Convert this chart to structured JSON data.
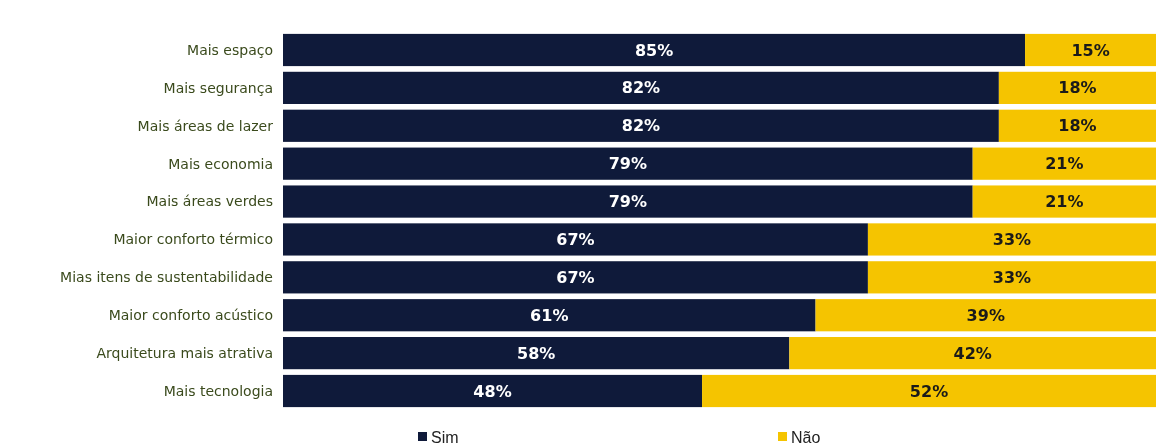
{
  "chart_data": {
    "type": "bar",
    "orientation": "horizontal",
    "stacked": true,
    "legend": "bottom",
    "xlim": [
      0,
      100
    ],
    "tick_labels": "y",
    "categories": [
      "Mais espaço",
      "Mais segurança",
      "Mais áreas de lazer",
      "Mais economia",
      "Mais áreas verdes",
      "Maior conforto térmico",
      "Mias itens de sustentabilidade",
      "Maior conforto acústico",
      "Arquitetura mais atrativa",
      "Mais tecnologia"
    ],
    "series": [
      {
        "name": "Sim",
        "color": "#0f1a3a",
        "values": [
          85,
          82,
          82,
          79,
          79,
          67,
          67,
          61,
          58,
          48
        ],
        "value_labels": [
          "85%",
          "82%",
          "82%",
          "79%",
          "79%",
          "67%",
          "67%",
          "61%",
          "58%",
          "48%"
        ]
      },
      {
        "name": "Não",
        "color": "#f5c400",
        "values": [
          15,
          18,
          18,
          21,
          21,
          33,
          33,
          39,
          42,
          52
        ],
        "value_labels": [
          "15%",
          "18%",
          "18%",
          "21%",
          "21%",
          "33%",
          "33%",
          "39%",
          "42%",
          "52%"
        ]
      }
    ]
  }
}
